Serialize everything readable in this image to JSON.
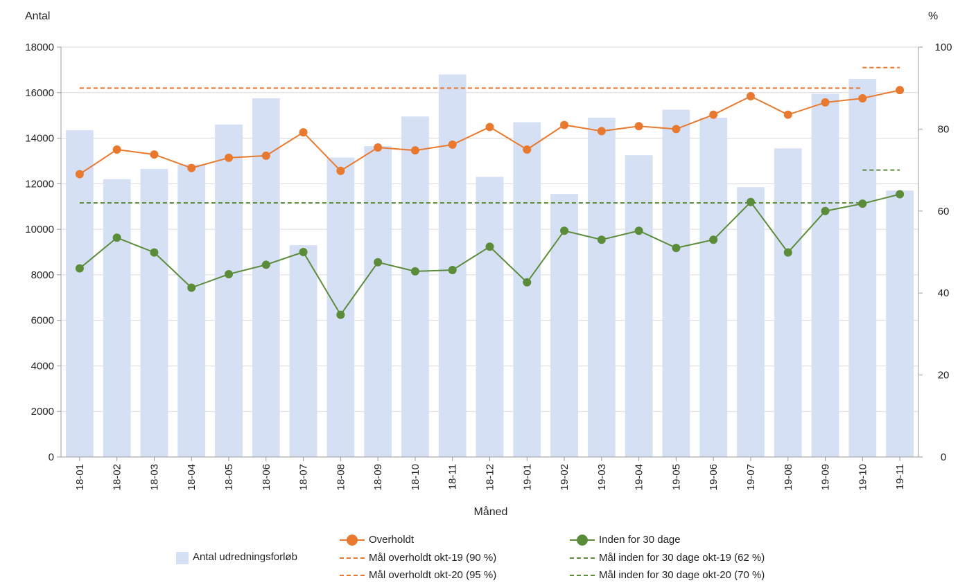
{
  "colors": {
    "bars": "#d6e0f5",
    "overholdt": "#e8792f",
    "inden": "#5b8c3a",
    "grid": "#d9d9d9",
    "axis": "#9a9a9a"
  },
  "chart_data": {
    "type": "bar",
    "ylabel_left": "Antal",
    "ylabel_right": "%",
    "xlabel": "Måned",
    "ylim_left": [
      0,
      18000
    ],
    "yticks_left": [
      0,
      2000,
      4000,
      6000,
      8000,
      10000,
      12000,
      14000,
      16000,
      18000
    ],
    "ylim_right": [
      0,
      100
    ],
    "yticks_right": [
      0,
      20,
      40,
      60,
      80,
      100
    ],
    "grid": "horizontal",
    "legend_position": "bottom",
    "categories": [
      "18-01",
      "18-02",
      "18-03",
      "18-04",
      "18-05",
      "18-06",
      "18-07",
      "18-08",
      "18-09",
      "18-10",
      "18-11",
      "18-12",
      "19-01",
      "19-02",
      "19-03",
      "19-04",
      "19-05",
      "19-06",
      "19-07",
      "19-08",
      "19-09",
      "19-10",
      "19-11"
    ],
    "bars": {
      "name": "Antal udredningsforløb",
      "axis": "left",
      "values": [
        14350,
        12200,
        12650,
        12850,
        14600,
        15750,
        9300,
        13150,
        13650,
        14950,
        16800,
        12300,
        14700,
        11550,
        14900,
        13250,
        15250,
        14900,
        11850,
        13550,
        15950,
        16600,
        11700
      ]
    },
    "series": [
      {
        "name": "Overholdt",
        "axis": "right",
        "values": [
          69.0,
          75.0,
          73.8,
          70.5,
          73.0,
          73.5,
          79.2,
          69.8,
          75.5,
          74.8,
          76.2,
          80.5,
          75.0,
          81.0,
          79.5,
          80.7,
          80.0,
          83.5,
          88.0,
          83.5,
          86.5,
          87.5,
          89.5
        ]
      },
      {
        "name": "Inden for 30 dage",
        "axis": "right",
        "values": [
          46.0,
          53.5,
          49.9,
          41.3,
          44.6,
          46.9,
          50.0,
          34.7,
          47.5,
          45.3,
          45.6,
          51.3,
          42.6,
          55.2,
          53.0,
          55.2,
          51.0,
          53.0,
          62.2,
          49.9,
          60.0,
          61.8,
          64.1
        ]
      }
    ],
    "targets": [
      {
        "name": "Mål overholdt okt-19 (90 %)",
        "axis": "right",
        "value": 90,
        "from": "18-01",
        "to": "19-10",
        "color": "#e8792f"
      },
      {
        "name": "Mål overholdt okt-20 (95 %)",
        "axis": "right",
        "value": 95,
        "from": "19-10",
        "to": "19-11",
        "color": "#e8792f"
      },
      {
        "name": "Mål inden for 30 dage okt-19 (62 %)",
        "axis": "right",
        "value": 62,
        "from": "18-01",
        "to": "19-10",
        "color": "#5b8c3a"
      },
      {
        "name": "Mål inden for 30 dage okt-20 (70 %)",
        "axis": "right",
        "value": 70,
        "from": "19-10",
        "to": "19-11",
        "color": "#5b8c3a"
      }
    ]
  },
  "legend": {
    "bars": "Antal udredningsforløb",
    "overholdt": "Overholdt",
    "inden": "Inden for 30 dage",
    "mal_overholdt_19": "Mål overholdt okt-19 (90 %)",
    "mal_overholdt_20": "Mål overholdt okt-20 (95 %)",
    "mal_inden_19": "Mål inden for 30 dage okt-19 (62 %)",
    "mal_inden_20": "Mål inden for 30 dage okt-20 (70 %)"
  }
}
